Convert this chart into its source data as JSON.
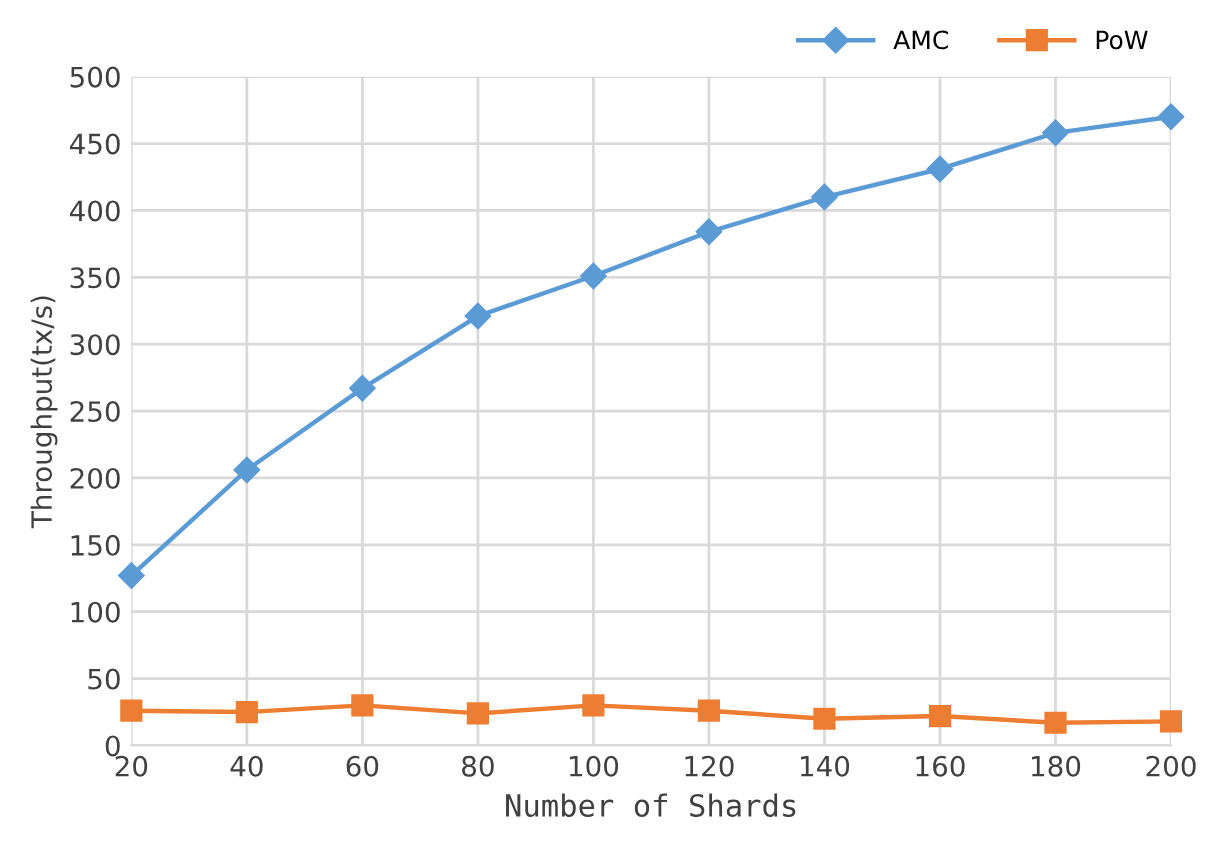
{
  "chart_data": {
    "type": "line",
    "xlabel": "Number of Shards",
    "ylabel": "Throughput(tx/s)",
    "x": [
      20,
      40,
      60,
      80,
      100,
      120,
      140,
      160,
      180,
      200
    ],
    "series": [
      {
        "name": "AMC",
        "color": "#5b9bd5",
        "marker": "diamond",
        "values": [
          127,
          206,
          267,
          321,
          351,
          384,
          410,
          431,
          458,
          470
        ]
      },
      {
        "name": "PoW",
        "color": "#ed7d31",
        "marker": "square",
        "values": [
          26,
          25,
          30,
          24,
          30,
          26,
          20,
          22,
          17,
          18
        ]
      }
    ],
    "xlim": [
      20,
      200
    ],
    "xticks": [
      20,
      40,
      60,
      80,
      100,
      120,
      140,
      160,
      180,
      200
    ],
    "ylim": [
      0,
      500
    ],
    "yticks": [
      0,
      50,
      100,
      150,
      200,
      250,
      300,
      350,
      400,
      450,
      500
    ],
    "grid": true,
    "legend": "top right",
    "line_style": "solid"
  }
}
